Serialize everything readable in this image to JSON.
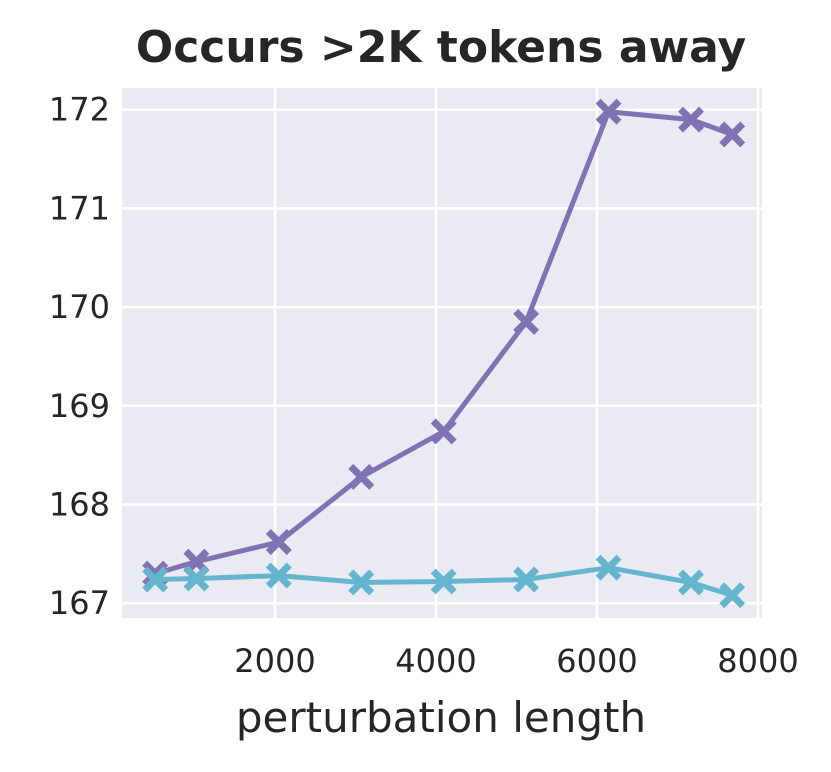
{
  "chart_data": {
    "type": "line",
    "title": "Occurs >2K tokens away",
    "xlabel": "perturbation length",
    "ylabel": "",
    "xlim": [
      100,
      8050
    ],
    "ylim": [
      166.85,
      172.22
    ],
    "xticks": [
      2000,
      4000,
      6000,
      8000
    ],
    "yticks": [
      167,
      168,
      169,
      170,
      171,
      172
    ],
    "grid": true,
    "background": "#eaeaf2",
    "marker": "X",
    "x": [
      512,
      1024,
      2048,
      3072,
      4096,
      5120,
      6144,
      7168,
      7680
    ],
    "series": [
      {
        "color": "#8172b3",
        "values": [
          167.3,
          167.42,
          167.62,
          168.28,
          168.74,
          169.85,
          171.98,
          171.9,
          171.75
        ]
      },
      {
        "color": "#64b5cd",
        "values": [
          167.24,
          167.25,
          167.28,
          167.21,
          167.22,
          167.24,
          167.36,
          167.21,
          167.08
        ]
      }
    ]
  }
}
